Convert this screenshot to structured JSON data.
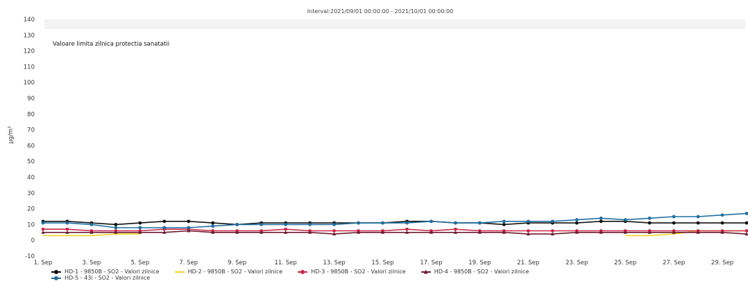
{
  "chart_data": {
    "type": "line",
    "title": "Interval:2021/09/01 00:00:00 - 2021/10/01 00:00:00",
    "ylabel": "µg/m³",
    "annotation": "Valoare limita zilnica protectia sanatatii",
    "ylim": [
      -10,
      140
    ],
    "yticks": [
      -10,
      0,
      10,
      20,
      30,
      40,
      50,
      60,
      70,
      80,
      90,
      100,
      110,
      120,
      130,
      140
    ],
    "x": [
      "1. Sep",
      "2. Sep",
      "3. Sep",
      "4. Sep",
      "5. Sep",
      "6. Sep",
      "7. Sep",
      "8. Sep",
      "9. Sep",
      "10. Sep",
      "11. Sep",
      "12. Sep",
      "13. Sep",
      "14. Sep",
      "15. Sep",
      "16. Sep",
      "17. Sep",
      "18. Sep",
      "19. Sep",
      "20. Sep",
      "21. Sep",
      "22. Sep",
      "23. Sep",
      "24. Sep",
      "25. Sep",
      "26. Sep",
      "27. Sep",
      "28. Sep",
      "29. Sep",
      "30. Sep"
    ],
    "xticks": [
      "1. Sep",
      "3. Sep",
      "5. Sep",
      "7. Sep",
      "9. Sep",
      "11. Sep",
      "13. Sep",
      "15. Sep",
      "17. Sep",
      "19. Sep",
      "21. Sep",
      "23. Sep",
      "25. Sep",
      "27. Sep",
      "29. Sep"
    ],
    "grid": false,
    "legend_position": "bottom",
    "series": [
      {
        "name": "HD-1 - 9850B - SO2 - Valori zilnice",
        "color": "#111111",
        "marker": "circle",
        "values": [
          12,
          12,
          11,
          10,
          11,
          12,
          12,
          11,
          10,
          11,
          11,
          11,
          11,
          11,
          11,
          12,
          12,
          11,
          11,
          10,
          11,
          11,
          11,
          12,
          12,
          11,
          11,
          11,
          11,
          11
        ]
      },
      {
        "name": "HD-2 - 9850B - SO2 - Valori zilnice",
        "color": "#f2d21b",
        "marker": "none",
        "values": [
          3,
          3,
          3,
          4,
          4,
          null,
          null,
          null,
          null,
          null,
          null,
          null,
          null,
          null,
          null,
          null,
          null,
          null,
          null,
          null,
          null,
          null,
          null,
          null,
          3,
          3,
          4,
          6,
          6,
          6
        ]
      },
      {
        "name": "HD-3 - 9850B - SO2 - Valori zilnice",
        "color": "#c8274a",
        "marker": "circle",
        "values": [
          7,
          7,
          6,
          6,
          6,
          7,
          7,
          6,
          6,
          6,
          7,
          6,
          6,
          6,
          6,
          7,
          6,
          7,
          6,
          6,
          6,
          6,
          6,
          6,
          6,
          6,
          6,
          6,
          6,
          6
        ]
      },
      {
        "name": "HD-4 - 9850B - SO2 - Valori zilnice",
        "color": "#6b1a2e",
        "marker": "triangle",
        "values": [
          5,
          5,
          5,
          5,
          5,
          5,
          6,
          5,
          5,
          5,
          5,
          5,
          4,
          5,
          5,
          5,
          5,
          5,
          5,
          5,
          4,
          4,
          5,
          5,
          5,
          5,
          5,
          5,
          5,
          4
        ]
      },
      {
        "name": "HD-5 - 43i - SO2 - Valori zilnice",
        "color": "#1f6fa0",
        "marker": "circle",
        "values": [
          11,
          11,
          10,
          8,
          8,
          8,
          8,
          9,
          10,
          10,
          10,
          10,
          10,
          11,
          11,
          11,
          12,
          11,
          11,
          12,
          12,
          12,
          13,
          14,
          13,
          14,
          15,
          15,
          16,
          17
        ]
      }
    ]
  }
}
